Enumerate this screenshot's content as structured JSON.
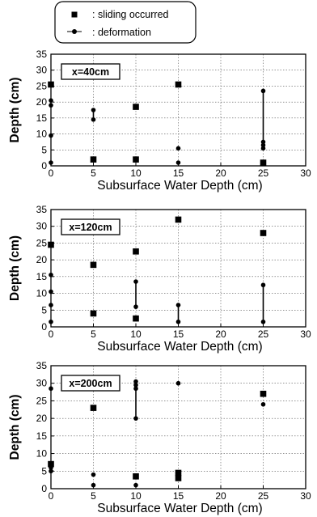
{
  "legend": {
    "sliding_label": ": sliding occurred",
    "deformation_label": ": deformation"
  },
  "colors": {
    "ink": "#000000",
    "grid": "#555555",
    "background": "#ffffff"
  },
  "chart_data": [
    {
      "type": "scatter",
      "panel_label": "x=40cm",
      "xlabel": "Subsurface Water Depth (cm)",
      "ylabel": "Depth (cm)",
      "xlim": [
        0,
        30
      ],
      "ylim": [
        0,
        35
      ],
      "xticks": [
        "0",
        "5",
        "10",
        "15",
        "20",
        "25",
        "30"
      ],
      "yticks": [
        "0",
        "5",
        "10",
        "15",
        "20",
        "25",
        "30",
        "35"
      ],
      "grid": true,
      "sliding": [
        {
          "x": 0,
          "y": 25.5
        },
        {
          "x": 5,
          "y": 2
        },
        {
          "x": 10,
          "y": 18.5
        },
        {
          "x": 10,
          "y": 2
        },
        {
          "x": 15,
          "y": 25.5
        },
        {
          "x": 25,
          "y": 1
        }
      ],
      "deformation": [
        {
          "x": 0,
          "y": 20.5
        },
        {
          "x": 0,
          "y": 19
        },
        {
          "x": 0,
          "y": 9.5
        },
        {
          "x": 0,
          "y": 1
        },
        {
          "x": 5,
          "y": 17.5
        },
        {
          "x": 5,
          "y": 14.5
        },
        {
          "x": 15,
          "y": 5.5
        },
        {
          "x": 15,
          "y": 1
        },
        {
          "x": 25,
          "y": 23.5
        },
        {
          "x": 25,
          "y": 7.5
        },
        {
          "x": 25,
          "y": 6.5
        },
        {
          "x": 25,
          "y": 5.5
        }
      ],
      "deformation_ranges": [
        {
          "x": 5,
          "y1": 14.5,
          "y2": 17.5
        },
        {
          "x": 25,
          "y1": 5.5,
          "y2": 23.5
        }
      ]
    },
    {
      "type": "scatter",
      "panel_label": "x=120cm",
      "xlabel": "Subsurface Water Depth (cm)",
      "ylabel": "Depth (cm)",
      "xlim": [
        0,
        30
      ],
      "ylim": [
        0,
        35
      ],
      "xticks": [
        "0",
        "5",
        "10",
        "15",
        "20",
        "25",
        "30"
      ],
      "yticks": [
        "0",
        "5",
        "10",
        "15",
        "20",
        "25",
        "30",
        "35"
      ],
      "grid": true,
      "sliding": [
        {
          "x": 0,
          "y": 24.5
        },
        {
          "x": 5,
          "y": 18.5
        },
        {
          "x": 5,
          "y": 4
        },
        {
          "x": 10,
          "y": 22.5
        },
        {
          "x": 10,
          "y": 2.5
        },
        {
          "x": 15,
          "y": 32
        },
        {
          "x": 25,
          "y": 28
        }
      ],
      "deformation": [
        {
          "x": 0,
          "y": 15.5
        },
        {
          "x": 0,
          "y": 10.5
        },
        {
          "x": 0,
          "y": 6.5
        },
        {
          "x": 0,
          "y": 1.5
        },
        {
          "x": 10,
          "y": 13.5
        },
        {
          "x": 10,
          "y": 6
        },
        {
          "x": 15,
          "y": 6.5
        },
        {
          "x": 15,
          "y": 1.5
        },
        {
          "x": 25,
          "y": 12.5
        },
        {
          "x": 25,
          "y": 1.5
        }
      ],
      "deformation_ranges": [
        {
          "x": 10,
          "y1": 6,
          "y2": 13.5
        },
        {
          "x": 15,
          "y1": 1.5,
          "y2": 6.5
        },
        {
          "x": 25,
          "y1": 1.5,
          "y2": 12.5
        }
      ]
    },
    {
      "type": "scatter",
      "panel_label": "x=200cm",
      "xlabel": "Subsurface Water Depth (cm)",
      "ylabel": "Depth (cm)",
      "xlim": [
        0,
        30
      ],
      "ylim": [
        0,
        35
      ],
      "xticks": [
        "0",
        "5",
        "10",
        "15",
        "20",
        "25",
        "30"
      ],
      "yticks": [
        "0",
        "5",
        "10",
        "15",
        "20",
        "25",
        "30",
        "35"
      ],
      "grid": true,
      "sliding": [
        {
          "x": 0,
          "y": 7
        },
        {
          "x": 5,
          "y": 23
        },
        {
          "x": 10,
          "y": 3.5
        },
        {
          "x": 15,
          "y": 4.5
        },
        {
          "x": 15,
          "y": 3
        },
        {
          "x": 25,
          "y": 27
        }
      ],
      "deformation": [
        {
          "x": 0,
          "y": 28.5
        },
        {
          "x": 0,
          "y": 6
        },
        {
          "x": 0,
          "y": 5
        },
        {
          "x": 5,
          "y": 4
        },
        {
          "x": 5,
          "y": 1
        },
        {
          "x": 10,
          "y": 30.5
        },
        {
          "x": 10,
          "y": 29.5
        },
        {
          "x": 10,
          "y": 28.5
        },
        {
          "x": 10,
          "y": 20
        },
        {
          "x": 10,
          "y": 1
        },
        {
          "x": 15,
          "y": 30
        },
        {
          "x": 25,
          "y": 24
        }
      ],
      "deformation_ranges": [
        {
          "x": 10,
          "y1": 20,
          "y2": 30.5
        }
      ]
    }
  ]
}
